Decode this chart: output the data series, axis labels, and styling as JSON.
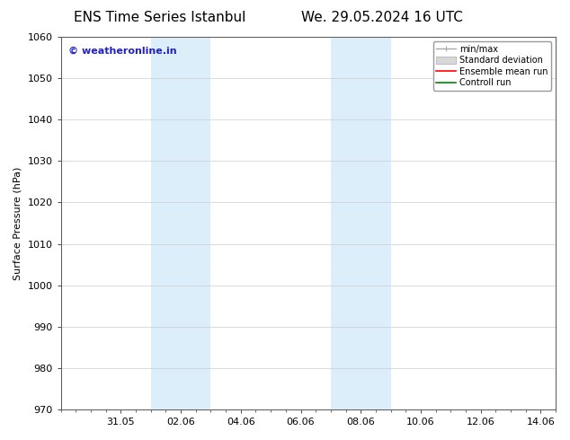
{
  "title_left": "ENS Time Series Istanbul",
  "title_right": "We. 29.05.2024 16 UTC",
  "ylabel": "Surface Pressure (hPa)",
  "ylim": [
    970,
    1060
  ],
  "yticks": [
    970,
    980,
    990,
    1000,
    1010,
    1020,
    1030,
    1040,
    1050,
    1060
  ],
  "xtick_labels": [
    "31.05",
    "02.06",
    "04.06",
    "06.06",
    "08.06",
    "10.06",
    "12.06",
    "14.06"
  ],
  "xtick_positions": [
    2,
    4,
    6,
    8,
    10,
    12,
    14,
    16
  ],
  "xlim": [
    0,
    16.5
  ],
  "shaded_bands": [
    {
      "x_start": 3.0,
      "x_end": 5.0
    },
    {
      "x_start": 9.0,
      "x_end": 11.0
    }
  ],
  "shade_color": "#dceef9",
  "background_color": "#ffffff",
  "watermark_text": "© weatheronline.in",
  "watermark_color": "#2222bb",
  "legend_entries": [
    {
      "label": "min/max",
      "color": "#aaaaaa",
      "style": "minmax"
    },
    {
      "label": "Standard deviation",
      "color": "#cccccc",
      "style": "stddev"
    },
    {
      "label": "Ensemble mean run",
      "color": "#ff0000",
      "style": "line"
    },
    {
      "label": "Controll run",
      "color": "#008800",
      "style": "line"
    }
  ],
  "grid_color": "#cccccc",
  "title_fontsize": 11,
  "axis_fontsize": 8,
  "tick_fontsize": 8,
  "watermark_fontsize": 8
}
